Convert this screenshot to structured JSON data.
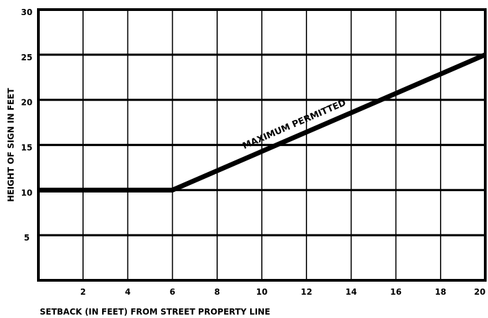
{
  "chart_data": {
    "type": "line",
    "title": "",
    "xlabel": "SETBACK (IN FEET) FROM STREET PROPERTY LINE",
    "ylabel": "HEIGHT OF SIGN IN FEET",
    "xlim": [
      0,
      20
    ],
    "ylim": [
      0,
      30
    ],
    "x_tick_labels": [
      "2",
      "4",
      "6",
      "8",
      "10",
      "12",
      "14",
      "16",
      "18",
      "20"
    ],
    "y_tick_labels": [
      "5",
      "10",
      "15",
      "20",
      "25",
      "30"
    ],
    "grid": true,
    "series": [
      {
        "name": "MAXIMUM PERMITTED",
        "x": [
          0,
          6,
          20
        ],
        "y": [
          10,
          10,
          25
        ]
      }
    ],
    "annotations": [
      {
        "text": "MAXIMUM PERMITTED",
        "x": 11.5,
        "y": 17
      }
    ]
  }
}
